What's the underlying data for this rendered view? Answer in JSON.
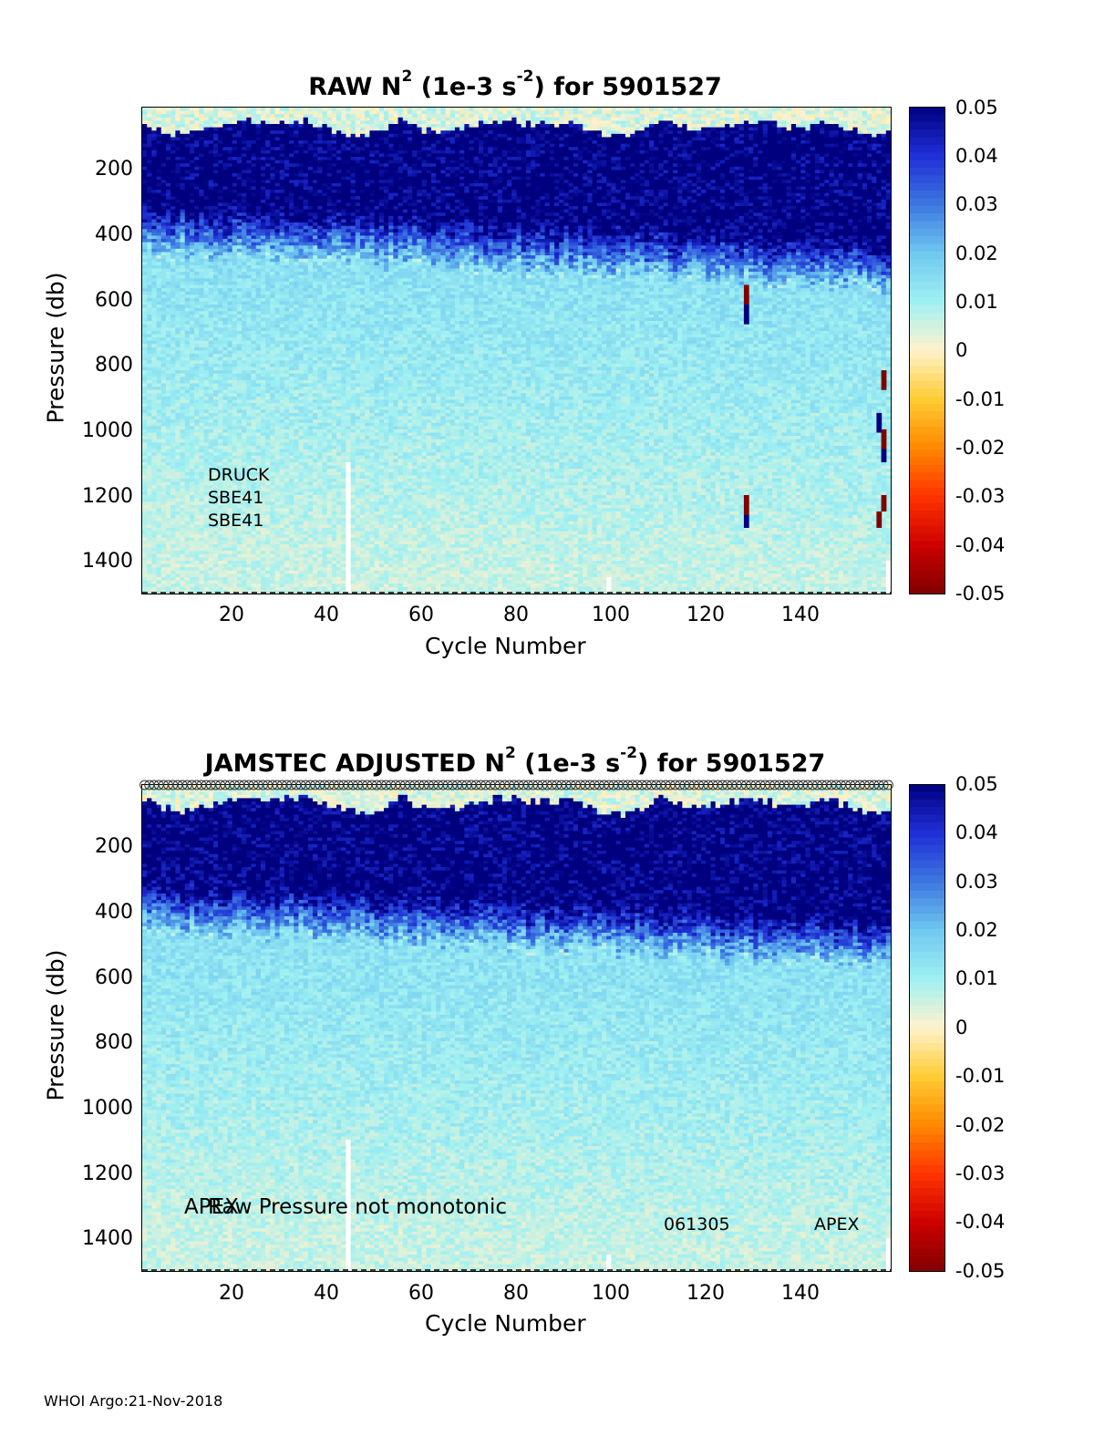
{
  "footer": "WHOI Argo:21-Nov-2018",
  "colormap": {
    "levels": [
      -0.05,
      -0.04,
      -0.03,
      -0.02,
      -0.01,
      0,
      0.01,
      0.02,
      0.03,
      0.04,
      0.05
    ],
    "colors": [
      "#800000",
      "#cc0000",
      "#ff3300",
      "#ff8800",
      "#ffcc33",
      "#fff2cc",
      "#9ff0f2",
      "#6fc8f0",
      "#3c76e0",
      "#1f2fd6",
      "#00007f"
    ]
  },
  "chart_data": [
    {
      "type": "heatmap",
      "title_prefix": "RAW N",
      "title_sup": "2",
      "title_mid": " (1e-3 s",
      "title_sup2": "-2",
      "title_suffix": ") for 5901527",
      "xlabel": "Cycle Number",
      "ylabel": "Pressure (db)",
      "xlim": [
        1,
        158
      ],
      "ylim": [
        1500,
        20
      ],
      "xticks": [
        "20",
        "40",
        "60",
        "80",
        "100",
        "120",
        "140"
      ],
      "yticks": [
        "200",
        "400",
        "600",
        "800",
        "1000",
        "1200",
        "1400"
      ],
      "colorbar_ticks": [
        "0.05",
        "0.04",
        "0.03",
        "0.02",
        "0.01",
        "0",
        "-0.01",
        "-0.02",
        "-0.03",
        "-0.04",
        "-0.05"
      ],
      "annotations": [
        "DRUCK",
        "SBE41",
        "SBE41"
      ],
      "anomalies": [
        {
          "cycle": 128,
          "p_from": 560,
          "p_to": 620,
          "value": -0.05
        },
        {
          "cycle": 128,
          "p_from": 620,
          "p_to": 680,
          "value": 0.05
        },
        {
          "cycle": 128,
          "p_from": 1200,
          "p_to": 1260,
          "value": -0.05
        },
        {
          "cycle": 128,
          "p_from": 1260,
          "p_to": 1300,
          "value": 0.05
        },
        {
          "cycle": 157,
          "p_from": 820,
          "p_to": 880,
          "value": -0.05
        },
        {
          "cycle": 156,
          "p_from": 950,
          "p_to": 1010,
          "value": 0.05
        },
        {
          "cycle": 157,
          "p_from": 1000,
          "p_to": 1060,
          "value": -0.05
        },
        {
          "cycle": 157,
          "p_from": 1060,
          "p_to": 1100,
          "value": 0.05
        },
        {
          "cycle": 157,
          "p_from": 1200,
          "p_to": 1250,
          "value": -0.05
        },
        {
          "cycle": 156,
          "p_from": 1250,
          "p_to": 1300,
          "value": -0.05
        }
      ]
    },
    {
      "type": "heatmap",
      "title_prefix": "JAMSTEC  ADJUSTED N",
      "title_sup": "2",
      "title_mid": " (1e-3 s",
      "title_sup2": "-2",
      "title_suffix": ") for 5901527",
      "xlabel": "Cycle Number",
      "ylabel": "Pressure (db)",
      "xlim": [
        1,
        158
      ],
      "ylim": [
        1500,
        20
      ],
      "xticks": [
        "20",
        "40",
        "60",
        "80",
        "100",
        "120",
        "140"
      ],
      "yticks": [
        "200",
        "400",
        "600",
        "800",
        "1000",
        "1200",
        "1400"
      ],
      "colorbar_ticks": [
        "0.05",
        "0.04",
        "0.03",
        "0.02",
        "0.01",
        "0",
        "-0.01",
        "-0.02",
        "-0.03",
        "-0.04",
        "-0.05"
      ],
      "annotations": [
        "APEX",
        "Raw Pressure not monotonic",
        "061305",
        "APEX"
      ],
      "anomalies": []
    }
  ]
}
